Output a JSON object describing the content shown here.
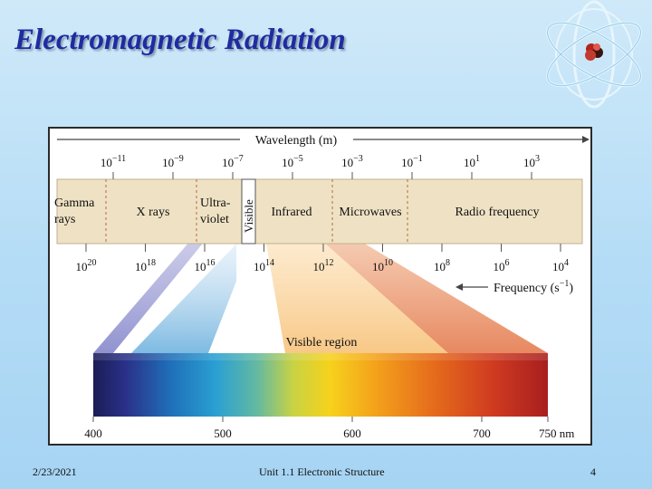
{
  "slide": {
    "title": "Electromagnetic Radiation",
    "footer": {
      "date": "2/23/2021",
      "course": "Unit 1.1 Electronic Structure",
      "page": "4"
    }
  },
  "diagram": {
    "wavelength_axis": {
      "label": "Wavelength (m)",
      "ticks": [
        {
          "base": "10",
          "exp": "−11"
        },
        {
          "base": "10",
          "exp": "−9"
        },
        {
          "base": "10",
          "exp": "−7"
        },
        {
          "base": "10",
          "exp": "−5"
        },
        {
          "base": "10",
          "exp": "−3"
        },
        {
          "base": "10",
          "exp": "−1"
        },
        {
          "base": "10",
          "exp": "1"
        },
        {
          "base": "10",
          "exp": "3"
        }
      ]
    },
    "regions": {
      "gamma": [
        "Gamma",
        "rays"
      ],
      "xrays": "X rays",
      "uv": [
        "Ultra-",
        "violet"
      ],
      "visible": "Visible",
      "infrared": "Infrared",
      "microwaves": "Microwaves",
      "radio": "Radio frequency"
    },
    "frequency_axis": {
      "label": "Frequency (s",
      "label_exp": "−1",
      "label_end": ")",
      "ticks": [
        {
          "base": "10",
          "exp": "20"
        },
        {
          "base": "10",
          "exp": "18"
        },
        {
          "base": "10",
          "exp": "16"
        },
        {
          "base": "10",
          "exp": "14"
        },
        {
          "base": "10",
          "exp": "12"
        },
        {
          "base": "10",
          "exp": "10"
        },
        {
          "base": "10",
          "exp": "8"
        },
        {
          "base": "10",
          "exp": "6"
        },
        {
          "base": "10",
          "exp": "4"
        }
      ]
    },
    "visible_region": {
      "label": "Visible region",
      "ticks": [
        "400",
        "500",
        "600",
        "700",
        "750 nm"
      ]
    }
  },
  "colors": {
    "title": "#1f2ca0",
    "band": "#efe2c4",
    "accent_blue": "#1f2ca0"
  }
}
